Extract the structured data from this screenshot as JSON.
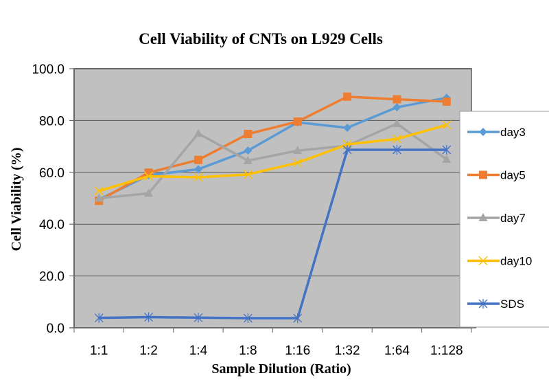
{
  "chart_data": {
    "type": "line",
    "title": "Cell Viability of CNTs on L929 Cells",
    "xlabel": "Sample Dilution (Ratio)",
    "ylabel": "Cell Viability (%)",
    "categories": [
      "1:1",
      "1:2",
      "1:4",
      "1:8",
      "1:16",
      "1:32",
      "1:64",
      "1:128"
    ],
    "ylim": [
      0,
      100
    ],
    "yticks": [
      "0.0",
      "20.0",
      "40.0",
      "60.0",
      "80.0",
      "100.0"
    ],
    "ytick_values": [
      0,
      20,
      40,
      60,
      80,
      100
    ],
    "grid": true,
    "legend_position": "right",
    "plot_background": "#c0c0c0",
    "series": [
      {
        "name": "day3",
        "color": "#5b9bd5",
        "marker": "diamond",
        "values": [
          49.5,
          58.9,
          61.2,
          68.4,
          79.3,
          77.2,
          85.1,
          88.8
        ]
      },
      {
        "name": "day5",
        "color": "#ed7d31",
        "marker": "square",
        "values": [
          49.0,
          59.9,
          64.8,
          74.8,
          79.6,
          89.2,
          88.2,
          87.3
        ]
      },
      {
        "name": "day7",
        "color": "#a5a5a5",
        "marker": "triangle",
        "values": [
          50.0,
          51.9,
          75.0,
          64.5,
          68.4,
          70.3,
          78.8,
          65.0
        ]
      },
      {
        "name": "day10",
        "color": "#ffc000",
        "marker": "x",
        "values": [
          52.8,
          58.5,
          58.1,
          59.2,
          63.7,
          70.8,
          72.9,
          78.3
        ]
      },
      {
        "name": "SDS",
        "color": "#4472c4",
        "marker": "star",
        "values": [
          3.8,
          4.1,
          3.9,
          3.7,
          3.7,
          68.7,
          68.7,
          68.7
        ]
      }
    ]
  }
}
